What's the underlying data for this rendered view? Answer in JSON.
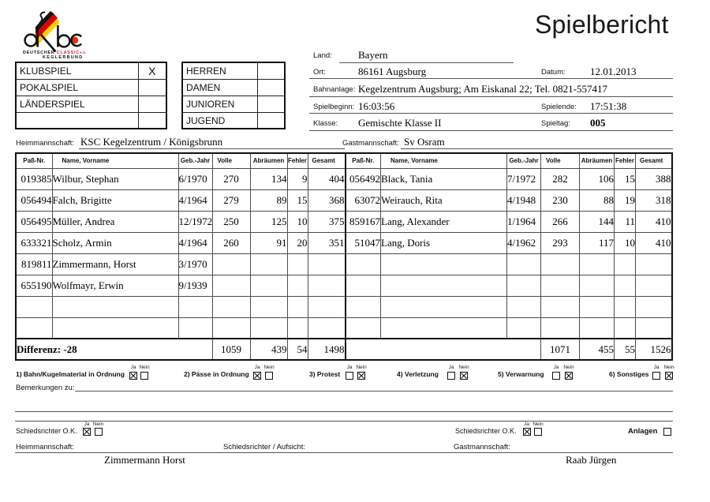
{
  "title": "Spielbericht",
  "logo": {
    "letters": "dkbc",
    "line1_black": "DEUTSCHER",
    "line1_red": "CLASSIC",
    "line1_suffix": "e.V.",
    "line2": "KEGLERBUND",
    "colors": {
      "black": "#111111",
      "red": "#d2232a",
      "flag_red": "#dd0000",
      "gold": "#ffce00"
    }
  },
  "match_type": {
    "rows": [
      {
        "label": "KLUBSPIEL",
        "mark": "X"
      },
      {
        "label": "POKALSPIEL",
        "mark": ""
      },
      {
        "label": "LÄNDERSPIEL",
        "mark": ""
      },
      {
        "label": "",
        "mark": ""
      }
    ]
  },
  "category": {
    "rows": [
      {
        "label": "HERREN",
        "mark": ""
      },
      {
        "label": "DAMEN",
        "mark": ""
      },
      {
        "label": "JUNIOREN",
        "mark": ""
      },
      {
        "label": "JUGEND",
        "mark": ""
      }
    ]
  },
  "info": {
    "land": {
      "label": "Land:",
      "value": "Bayern"
    },
    "ort": {
      "label": "Ort:",
      "value": "86161 Augsburg"
    },
    "datum": {
      "label": "Datum:",
      "value": "12.01.2013"
    },
    "bahnanlage": {
      "label": "Bahnanlage:",
      "value": "Kegelzentrum Augsburg; Am Eiskanal 22; Tel. 0821-557417"
    },
    "spielbeginn": {
      "label": "Spielbeginn:",
      "value": "16:03:56"
    },
    "spielende": {
      "label": "Spielende:",
      "value": "17:51:38"
    },
    "klasse": {
      "label": "Klasse:",
      "value": "Gemischte Klasse II"
    },
    "spieltag": {
      "label": "Spieltag:",
      "value": "005"
    }
  },
  "teams": {
    "heim": {
      "label": "Heimmannschaft:",
      "value": "KSC Kegelzentrum / Königsbrunn"
    },
    "gast": {
      "label": "Gastmannschaft:",
      "value": "Sv Osram"
    }
  },
  "table": {
    "headers": [
      "Paß-Nr.",
      "Name, Vorname",
      "Geb.-Jahr",
      "Volle",
      "Abräumen",
      "Fehler",
      "Gesamt"
    ],
    "home_rows": [
      [
        "019385",
        "Wilbur, Stephan",
        "6/1970",
        "270",
        "134",
        "9",
        "404"
      ],
      [
        "056494",
        "Falch, Brigitte",
        "4/1964",
        "279",
        "89",
        "15",
        "368"
      ],
      [
        "056495",
        "Müller, Andrea",
        "12/1972",
        "250",
        "125",
        "10",
        "375"
      ],
      [
        "633321",
        "Scholz, Armin",
        "4/1964",
        "260",
        "91",
        "20",
        "351"
      ],
      [
        "819811",
        "Zimmermann, Horst",
        "3/1970",
        "",
        "",
        "",
        ""
      ],
      [
        "655190",
        "Wolfmayr, Erwin",
        "9/1939",
        "",
        "",
        "",
        ""
      ],
      [
        "",
        "",
        "",
        "",
        "",
        "",
        ""
      ],
      [
        "",
        "",
        "",
        "",
        "",
        "",
        ""
      ]
    ],
    "guest_rows": [
      [
        "056492",
        "Black, Tania",
        "7/1972",
        "282",
        "106",
        "15",
        "388"
      ],
      [
        "63072",
        "Weirauch, Rita",
        "4/1948",
        "230",
        "88",
        "19",
        "318"
      ],
      [
        "859167",
        "Lang, Alexander",
        "1/1964",
        "266",
        "144",
        "11",
        "410"
      ],
      [
        "51047",
        "Lang, Doris",
        "4/1962",
        "293",
        "117",
        "10",
        "410"
      ],
      [
        "",
        "",
        "",
        "",
        "",
        "",
        ""
      ],
      [
        "",
        "",
        "",
        "",
        "",
        "",
        ""
      ],
      [
        "",
        "",
        "",
        "",
        "",
        "",
        ""
      ],
      [
        "",
        "",
        "",
        "",
        "",
        "",
        ""
      ]
    ],
    "home_total_label": "Differenz: -28",
    "home_totals": [
      "1059",
      "439",
      "54",
      "1498"
    ],
    "guest_total_label": "",
    "guest_totals": [
      "1071",
      "455",
      "55",
      "1526"
    ]
  },
  "checks": {
    "ja_label": "Ja",
    "nein_label": "Nein",
    "items": [
      {
        "label": "1) Bahn/Kugelmaterial in Ordnung",
        "ja": true,
        "nein": false
      },
      {
        "label": "2) Pässe in Ordnung",
        "ja": true,
        "nein": false
      },
      {
        "label": "3) Protest",
        "ja": false,
        "nein": true
      },
      {
        "label": "4) Verletzung",
        "ja": false,
        "nein": true
      },
      {
        "label": "5) Verwarnung",
        "ja": false,
        "nein": true
      },
      {
        "label": "6) Sonstiges",
        "ja": false,
        "nein": true
      }
    ]
  },
  "bemerkungen": {
    "label": "Bemerkungen zu:"
  },
  "referee": {
    "label": "Schiedsrichter O.K.",
    "left": {
      "ja": true,
      "nein": false
    },
    "right": {
      "ja": true,
      "nein": false
    },
    "anlagen_label": "Anlagen",
    "anlagen_checked": false
  },
  "signatures": {
    "heim_label": "Heimmannschaft:",
    "referee_label": "Schiedsrichter / Aufsicht:",
    "gast_label": "Gastmannschaft:",
    "heim_name": "Zimmermann Horst",
    "gast_name": "Raab Jürgen"
  }
}
